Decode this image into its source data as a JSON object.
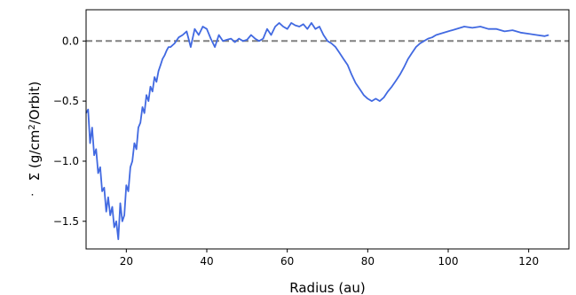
{
  "chart_data": {
    "type": "line",
    "title": "",
    "xlabel": "Radius (au)",
    "ylabel": {
      "prefix": "Σ (g/cm",
      "sup": "2",
      "suffix": "/Orbit)"
    },
    "xlim": [
      10,
      130
    ],
    "ylim": [
      -1.73,
      0.26
    ],
    "xticks": [
      {
        "value": 20,
        "label": "20"
      },
      {
        "value": 40,
        "label": "40"
      },
      {
        "value": 60,
        "label": "60"
      },
      {
        "value": 80,
        "label": "80"
      },
      {
        "value": 100,
        "label": "100"
      },
      {
        "value": 120,
        "label": "120"
      }
    ],
    "yticks": [
      {
        "value": 0.0,
        "label": "0.0"
      },
      {
        "value": -0.5,
        "label": "−0.5"
      },
      {
        "value": -1.0,
        "label": "−1.0"
      },
      {
        "value": -1.5,
        "label": "−1.5"
      }
    ],
    "grid": false,
    "reference_line": {
      "y": 0,
      "style": "dashed",
      "color": "#808080"
    },
    "series_color": "#4169e1",
    "series": [
      {
        "x": [
          10,
          10.5,
          11,
          11.5,
          12,
          12.5,
          13,
          13.5,
          14,
          14.5,
          15,
          15.5,
          16,
          16.5,
          17,
          17.5,
          18,
          18.5,
          19,
          19.5,
          20,
          20.5,
          21,
          21.5,
          22,
          22.5,
          23,
          23.5,
          24,
          24.5,
          25,
          25.5,
          26,
          26.5,
          27,
          27.5,
          28,
          28.5,
          29,
          29.5,
          30,
          30.5,
          31,
          32,
          33,
          34,
          35,
          36,
          37,
          38,
          39,
          40,
          41,
          42,
          43,
          44,
          45,
          46,
          47,
          48,
          49,
          50,
          51,
          52,
          53,
          54,
          55,
          56,
          57,
          58,
          59,
          60,
          61,
          62,
          63,
          64,
          65,
          66,
          67,
          68,
          69,
          70,
          71,
          72,
          73,
          74,
          75,
          76,
          77,
          78,
          79,
          80,
          81,
          82,
          83,
          84,
          85,
          86,
          87,
          88,
          89,
          90,
          91,
          92,
          93,
          94,
          95,
          96,
          97,
          98,
          100,
          102,
          104,
          106,
          108,
          110,
          112,
          114,
          116,
          118,
          120,
          122,
          124,
          125
        ],
        "y": [
          -0.6,
          -0.57,
          -0.85,
          -0.72,
          -0.95,
          -0.9,
          -1.1,
          -1.05,
          -1.25,
          -1.22,
          -1.42,
          -1.3,
          -1.45,
          -1.38,
          -1.55,
          -1.5,
          -1.65,
          -1.35,
          -1.5,
          -1.45,
          -1.2,
          -1.25,
          -1.05,
          -1.0,
          -0.85,
          -0.9,
          -0.72,
          -0.68,
          -0.55,
          -0.6,
          -0.45,
          -0.5,
          -0.38,
          -0.42,
          -0.3,
          -0.34,
          -0.25,
          -0.2,
          -0.15,
          -0.12,
          -0.08,
          -0.05,
          -0.05,
          -0.02,
          0.03,
          0.05,
          0.08,
          -0.05,
          0.1,
          0.05,
          0.12,
          0.1,
          0.02,
          -0.05,
          0.05,
          0.0,
          0.01,
          0.02,
          -0.01,
          0.02,
          0.0,
          0.01,
          0.05,
          0.02,
          0.0,
          0.02,
          0.1,
          0.05,
          0.12,
          0.15,
          0.12,
          0.1,
          0.15,
          0.13,
          0.12,
          0.14,
          0.1,
          0.15,
          0.1,
          0.12,
          0.05,
          0.0,
          -0.02,
          -0.05,
          -0.1,
          -0.15,
          -0.2,
          -0.28,
          -0.35,
          -0.4,
          -0.45,
          -0.48,
          -0.5,
          -0.48,
          -0.5,
          -0.47,
          -0.42,
          -0.38,
          -0.33,
          -0.28,
          -0.22,
          -0.15,
          -0.1,
          -0.05,
          -0.02,
          0.0,
          0.02,
          0.03,
          0.05,
          0.06,
          0.08,
          0.1,
          0.12,
          0.11,
          0.12,
          0.1,
          0.1,
          0.08,
          0.09,
          0.07,
          0.06,
          0.05,
          0.04,
          0.05
        ]
      }
    ]
  }
}
